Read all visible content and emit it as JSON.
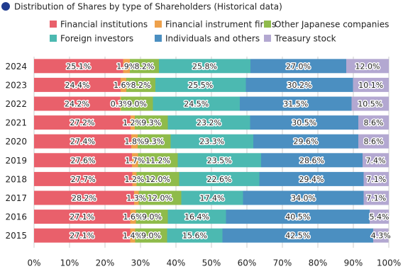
{
  "chart_data": {
    "type": "stacked-barh",
    "title": "Distribution of Shares by type of Shareholders (Historical data)",
    "categories": [
      "2024",
      "2023",
      "2022",
      "2021",
      "2020",
      "2019",
      "2018",
      "2017",
      "2016",
      "2015"
    ],
    "series": [
      {
        "name": "Financial institutions",
        "color": "#e9606b",
        "values": [
          25.1,
          24.4,
          24.2,
          27.2,
          27.4,
          27.6,
          27.7,
          28.2,
          27.1,
          27.1
        ],
        "value_labels": [
          "25.1%",
          "24.4%",
          "24.2%",
          "27.2%",
          "27.4%",
          "27.6%",
          "27.7%",
          "28.2%",
          "27.1%",
          "27.1%"
        ]
      },
      {
        "name": "Financial instrument firms",
        "color": "#eea14c",
        "values": [
          1.9,
          1.6,
          0.3,
          1.2,
          1.8,
          1.7,
          1.2,
          1.3,
          1.6,
          1.4
        ],
        "value_labels": [
          "1.9%",
          "1.6%",
          "0.3%",
          "1.2%",
          "1.8%",
          "1.7%",
          "1.2%",
          "1.3%",
          "1.6%",
          "1.4%"
        ]
      },
      {
        "name": "Other Japanese companies",
        "color": "#8fbb4b",
        "values": [
          8.2,
          8.2,
          9.0,
          9.3,
          9.3,
          11.2,
          12.0,
          12.0,
          9.0,
          9.0
        ],
        "value_labels": [
          "8.2%",
          "8.2%",
          "9.0%",
          "9.3%",
          "9.3%",
          "11.2%",
          "12.0%",
          "12.0%",
          "9.0%",
          "9.0%"
        ]
      },
      {
        "name": "Foreign investors",
        "color": "#4cb9b1",
        "values": [
          25.8,
          25.5,
          24.5,
          23.2,
          23.3,
          23.5,
          22.6,
          17.4,
          16.4,
          15.6
        ],
        "value_labels": [
          "25.8%",
          "25.5%",
          "24.5%",
          "23.2%",
          "23.3%",
          "23.5%",
          "22.6%",
          "17.4%",
          "16.4%",
          "15.6%"
        ]
      },
      {
        "name": "Individuals and others",
        "color": "#4b8fc1",
        "values": [
          27.0,
          30.2,
          31.5,
          30.5,
          29.6,
          28.6,
          29.4,
          34.0,
          40.5,
          42.5
        ],
        "value_labels": [
          "27.0%",
          "30.2%",
          "31.5%",
          "30.5%",
          "29.6%",
          "28.6%",
          "29.4%",
          "34.0%",
          "40.5%",
          "42.5%"
        ]
      },
      {
        "name": "Treasury stock",
        "color": "#b3a8d1",
        "values": [
          12.0,
          10.1,
          10.5,
          8.6,
          8.6,
          7.4,
          7.1,
          7.1,
          5.4,
          4.3
        ],
        "value_labels": [
          "12.0%",
          "10.1%",
          "10.5%",
          "8.6%",
          "8.6%",
          "7.4%",
          "7.1%",
          "7.1%",
          "5.4%",
          "4.3%"
        ]
      }
    ],
    "xlim": [
      0,
      100
    ],
    "xticks": [
      {
        "value": 0,
        "label": "0%"
      },
      {
        "value": 10,
        "label": "10%"
      },
      {
        "value": 20,
        "label": "20%"
      },
      {
        "value": 30,
        "label": "30%"
      },
      {
        "value": 40,
        "label": "40%"
      },
      {
        "value": 50,
        "label": "50%"
      },
      {
        "value": 60,
        "label": "60%"
      },
      {
        "value": 70,
        "label": "70%"
      },
      {
        "value": 80,
        "label": "80%"
      },
      {
        "value": 90,
        "label": "90%"
      },
      {
        "value": 100,
        "label": "100%"
      }
    ],
    "grid": true
  }
}
